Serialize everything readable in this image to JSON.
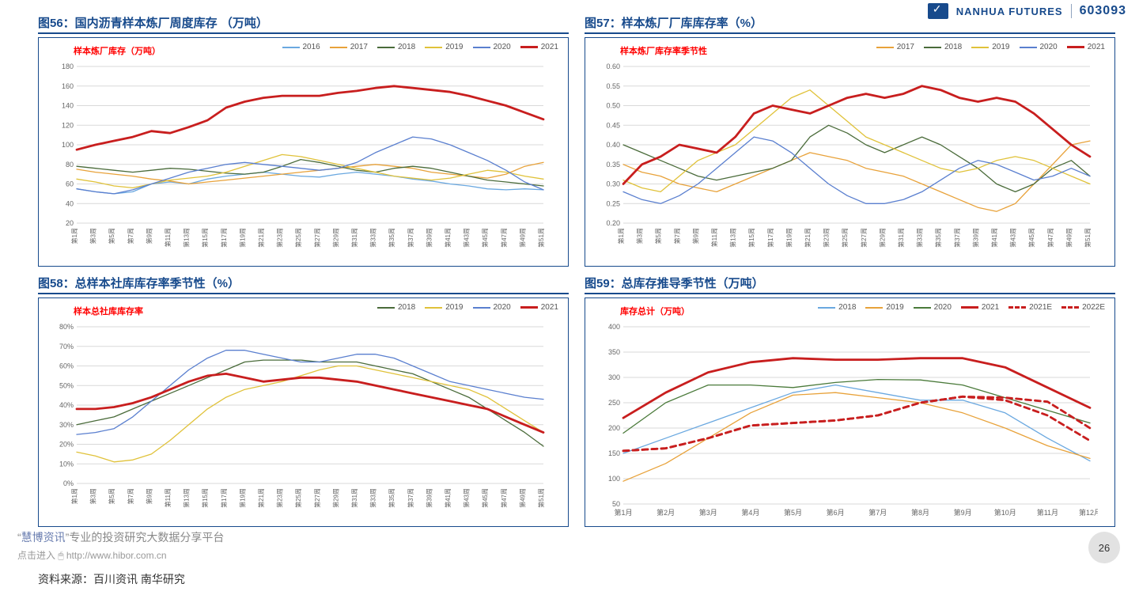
{
  "header": {
    "brand": "NANHUA FUTURES",
    "stock_code": "603093"
  },
  "page_number": "26",
  "sources_label": "资料来源：百川资讯 南华研究",
  "watermark": {
    "line1_prefix": "“",
    "line1_name": "慧博资讯",
    "line1_suffix": "”专业的投资研究大数据分享平台",
    "line2": "点击进入 🖱 http://www.hibor.com.cn"
  },
  "colors": {
    "title": "#174a8c",
    "inner_title": "#ff0000",
    "grid": "#d9d9d9",
    "axis_text": "#666666",
    "series": {
      "2016": "#6aa8e0",
      "2017": "#e8a23a",
      "2018": "#4a6b3a",
      "2019": "#e0c23a",
      "2020": "#5a7fcf",
      "2021": "#c81e1e",
      "2021E": "#c81e1e",
      "2022E": "#c81e1e",
      "2020_green": "#4a7a3a"
    }
  },
  "chart56": {
    "title": "图56：国内沥青样本炼厂周度库存 （万吨）",
    "inner_title": "样本炼厂库存（万吨）",
    "type": "line",
    "x_labels": [
      "第1周",
      "第3周",
      "第5周",
      "第7周",
      "第9周",
      "第11周",
      "第13周",
      "第15周",
      "第17周",
      "第19周",
      "第21周",
      "第23周",
      "第25周",
      "第27周",
      "第29周",
      "第31周",
      "第33周",
      "第35周",
      "第37周",
      "第39周",
      "第41周",
      "第43周",
      "第45周",
      "第47周",
      "第49周",
      "第51周"
    ],
    "ylim": [
      20,
      180
    ],
    "ytick_step": 20,
    "legend_order": [
      "2016",
      "2017",
      "2018",
      "2019",
      "2020",
      "2021"
    ],
    "series": {
      "2016": [
        55,
        52,
        50,
        52,
        60,
        62,
        60,
        65,
        68,
        70,
        72,
        70,
        68,
        67,
        70,
        72,
        70,
        68,
        65,
        63,
        60,
        58,
        55,
        54,
        55,
        54
      ],
      "2017": [
        75,
        72,
        70,
        68,
        65,
        63,
        60,
        62,
        64,
        66,
        68,
        70,
        72,
        74,
        76,
        78,
        80,
        78,
        76,
        72,
        70,
        68,
        66,
        70,
        78,
        82
      ],
      "2018": [
        78,
        76,
        74,
        72,
        74,
        76,
        75,
        73,
        71,
        70,
        72,
        78,
        85,
        82,
        78,
        74,
        72,
        76,
        78,
        76,
        72,
        68,
        64,
        62,
        60,
        58
      ],
      "2019": [
        65,
        62,
        58,
        56,
        60,
        64,
        66,
        68,
        72,
        78,
        84,
        90,
        88,
        84,
        80,
        76,
        72,
        68,
        66,
        64,
        66,
        70,
        74,
        72,
        68,
        65
      ],
      "2020": [
        55,
        52,
        50,
        54,
        60,
        66,
        72,
        76,
        80,
        82,
        80,
        78,
        76,
        74,
        76,
        82,
        92,
        100,
        108,
        106,
        100,
        92,
        84,
        74,
        62,
        54
      ],
      "2021": [
        95,
        100,
        104,
        108,
        114,
        112,
        118,
        125,
        138,
        144,
        148,
        150,
        150,
        150,
        153,
        155,
        158,
        160,
        158,
        156,
        154,
        150,
        145,
        140,
        133,
        126
      ]
    },
    "line_widths": {
      "2016": 1.3,
      "2017": 1.3,
      "2018": 1.3,
      "2019": 1.3,
      "2020": 1.3,
      "2021": 2.8
    },
    "background_color": "#ffffff"
  },
  "chart57": {
    "title": "图57：样本炼厂厂库库存率（%）",
    "inner_title": "样本炼厂库存率季节性",
    "type": "line",
    "x_labels": [
      "第1周",
      "第3周",
      "第5周",
      "第7周",
      "第9周",
      "第11周",
      "第13周",
      "第15周",
      "第17周",
      "第19周",
      "第21周",
      "第23周",
      "第25周",
      "第27周",
      "第29周",
      "第31周",
      "第33周",
      "第35周",
      "第37周",
      "第39周",
      "第41周",
      "第43周",
      "第45周",
      "第47周",
      "第49周",
      "第51周"
    ],
    "ylim": [
      0.2,
      0.6
    ],
    "ytick_step": 0.05,
    "legend_order": [
      "2017",
      "2018",
      "2019",
      "2020",
      "2021"
    ],
    "series": {
      "2017": [
        0.35,
        0.33,
        0.32,
        0.3,
        0.29,
        0.28,
        0.3,
        0.32,
        0.34,
        0.36,
        0.38,
        0.37,
        0.36,
        0.34,
        0.33,
        0.32,
        0.3,
        0.28,
        0.26,
        0.24,
        0.23,
        0.25,
        0.3,
        0.35,
        0.4,
        0.41
      ],
      "2018": [
        0.4,
        0.38,
        0.36,
        0.34,
        0.32,
        0.31,
        0.32,
        0.33,
        0.34,
        0.36,
        0.42,
        0.45,
        0.43,
        0.4,
        0.38,
        0.4,
        0.42,
        0.4,
        0.37,
        0.34,
        0.3,
        0.28,
        0.3,
        0.34,
        0.36,
        0.32
      ],
      "2019": [
        0.31,
        0.29,
        0.28,
        0.32,
        0.36,
        0.38,
        0.4,
        0.44,
        0.48,
        0.52,
        0.54,
        0.5,
        0.46,
        0.42,
        0.4,
        0.38,
        0.36,
        0.34,
        0.33,
        0.34,
        0.36,
        0.37,
        0.36,
        0.34,
        0.32,
        0.3
      ],
      "2020": [
        0.28,
        0.26,
        0.25,
        0.27,
        0.3,
        0.34,
        0.38,
        0.42,
        0.41,
        0.38,
        0.34,
        0.3,
        0.27,
        0.25,
        0.25,
        0.26,
        0.28,
        0.31,
        0.34,
        0.36,
        0.35,
        0.33,
        0.31,
        0.32,
        0.34,
        0.32
      ],
      "2021": [
        0.3,
        0.35,
        0.37,
        0.4,
        0.39,
        0.38,
        0.42,
        0.48,
        0.5,
        0.49,
        0.48,
        0.5,
        0.52,
        0.53,
        0.52,
        0.53,
        0.55,
        0.54,
        0.52,
        0.51,
        0.52,
        0.51,
        0.48,
        0.44,
        0.4,
        0.37
      ]
    },
    "line_widths": {
      "2017": 1.3,
      "2018": 1.3,
      "2019": 1.3,
      "2020": 1.3,
      "2021": 2.8
    },
    "background_color": "#ffffff"
  },
  "chart58": {
    "title": "图58：总样本社库库存率季节性（%）",
    "inner_title": "样本总社库库存率",
    "type": "line",
    "x_labels": [
      "第1周",
      "第3周",
      "第5周",
      "第7周",
      "第9周",
      "第11周",
      "第13周",
      "第15周",
      "第17周",
      "第19周",
      "第21周",
      "第23周",
      "第25周",
      "第27周",
      "第29周",
      "第31周",
      "第33周",
      "第35周",
      "第37周",
      "第39周",
      "第41周",
      "第43周",
      "第45周",
      "第47周",
      "第49周",
      "第51周"
    ],
    "ylim": [
      0,
      80
    ],
    "ytick_step": 10,
    "y_format": "percent",
    "legend_order": [
      "2018",
      "2019",
      "2020",
      "2021"
    ],
    "series": {
      "2018": [
        30,
        32,
        34,
        38,
        42,
        46,
        50,
        54,
        58,
        62,
        63,
        63,
        63,
        62,
        62,
        62,
        60,
        58,
        56,
        52,
        48,
        44,
        38,
        32,
        26,
        19
      ],
      "2019": [
        16,
        14,
        11,
        12,
        15,
        22,
        30,
        38,
        44,
        48,
        50,
        52,
        55,
        58,
        60,
        60,
        58,
        56,
        54,
        52,
        50,
        48,
        44,
        38,
        32,
        26
      ],
      "2020": [
        25,
        26,
        28,
        34,
        42,
        50,
        58,
        64,
        68,
        68,
        66,
        64,
        62,
        62,
        64,
        66,
        66,
        64,
        60,
        56,
        52,
        50,
        48,
        46,
        44,
        43
      ],
      "2021": [
        38,
        38,
        39,
        41,
        44,
        48,
        52,
        55,
        56,
        54,
        52,
        53,
        54,
        54,
        53,
        52,
        50,
        48,
        46,
        44,
        42,
        40,
        38,
        34,
        30,
        26
      ]
    },
    "line_widths": {
      "2018": 1.3,
      "2019": 1.3,
      "2020": 1.3,
      "2021": 2.8
    },
    "background_color": "#ffffff"
  },
  "chart59": {
    "title": "图59：总库存推导季节性（万吨）",
    "inner_title": "库存总计（万吨）",
    "type": "line",
    "x_labels": [
      "第1月",
      "第2月",
      "第3月",
      "第4月",
      "第5月",
      "第6月",
      "第7月",
      "第8月",
      "第9月",
      "第10月",
      "第11月",
      "第12月"
    ],
    "ylim": [
      50,
      400
    ],
    "ytick_step": 50,
    "legend_order": [
      "2018",
      "2019",
      "2020",
      "2021",
      "2021E",
      "2022E"
    ],
    "legend_styles": {
      "2021E": "dashed",
      "2022E": "dashed"
    },
    "series": {
      "2018": [
        150,
        180,
        210,
        240,
        270,
        285,
        270,
        255,
        255,
        230,
        180,
        135
      ],
      "2019": [
        95,
        130,
        180,
        230,
        265,
        270,
        260,
        250,
        230,
        200,
        165,
        140
      ],
      "2020": [
        190,
        250,
        285,
        285,
        280,
        290,
        296,
        295,
        285,
        260,
        235,
        210
      ],
      "2021": [
        220,
        270,
        310,
        330,
        338,
        335,
        335,
        338,
        338,
        320,
        280,
        240
      ],
      "2021E": [
        155,
        160,
        180,
        205,
        210,
        215,
        225,
        250,
        262,
        260,
        252,
        200
      ],
      "2022E": [
        155,
        160,
        180,
        205,
        210,
        215,
        225,
        250,
        262,
        255,
        225,
        175
      ]
    },
    "colors_override": {
      "2018": "#6aa8e0",
      "2019": "#e8a23a",
      "2020": "#4a7a3a",
      "2021": "#c81e1e",
      "2021E": "#c81e1e",
      "2022E": "#c81e1e"
    },
    "line_widths": {
      "2018": 1.3,
      "2019": 1.3,
      "2020": 1.3,
      "2021": 2.8,
      "2021E": 2.8,
      "2022E": 2.8
    },
    "background_color": "#ffffff"
  }
}
